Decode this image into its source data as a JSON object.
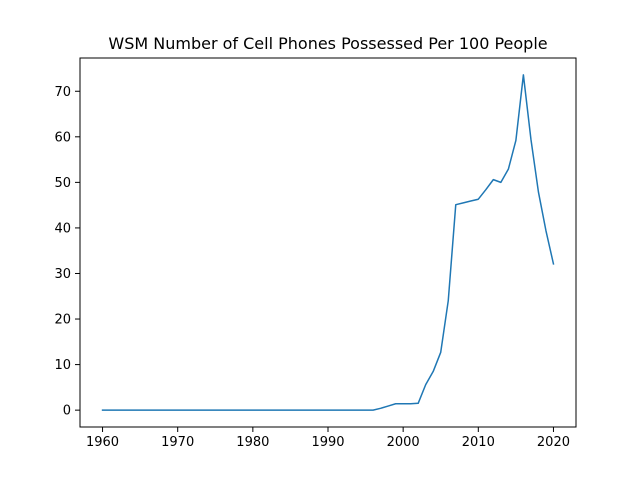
{
  "chart_data": {
    "type": "line",
    "title": "WSM Number of Cell Phones Possessed Per 100 People",
    "xlabel": "",
    "ylabel": "",
    "xlim": [
      1957.0,
      2023.0
    ],
    "ylim": [
      -3.7,
      77.3
    ],
    "x_ticks": [
      1960,
      1970,
      1980,
      1990,
      2000,
      2010,
      2020
    ],
    "y_ticks": [
      0,
      10,
      20,
      30,
      40,
      50,
      60,
      70
    ],
    "grid": false,
    "legend": "none",
    "series": [
      {
        "color": "#1f77b4",
        "x": [
          1960,
          1961,
          1962,
          1963,
          1964,
          1965,
          1966,
          1967,
          1968,
          1969,
          1970,
          1971,
          1972,
          1973,
          1974,
          1975,
          1976,
          1977,
          1978,
          1979,
          1980,
          1981,
          1982,
          1983,
          1984,
          1985,
          1986,
          1987,
          1988,
          1989,
          1990,
          1991,
          1992,
          1993,
          1994,
          1995,
          1996,
          1997,
          1998,
          1999,
          2000,
          2001,
          2002,
          2003,
          2004,
          2005,
          2006,
          2007,
          2008,
          2009,
          2010,
          2011,
          2012,
          2013,
          2014,
          2015,
          2016,
          2017,
          2018,
          2019,
          2020
        ],
        "y": [
          0,
          0,
          0,
          0,
          0,
          0,
          0,
          0,
          0,
          0,
          0,
          0,
          0,
          0,
          0,
          0,
          0,
          0,
          0,
          0,
          0,
          0,
          0,
          0,
          0,
          0,
          0,
          0,
          0,
          0,
          0,
          0,
          0,
          0,
          0,
          0,
          0,
          0.4,
          0.9,
          1.4,
          1.4,
          1.4,
          1.5,
          5.6,
          8.5,
          12.7,
          24.0,
          45.1,
          45.5,
          45.9,
          46.3,
          48.4,
          50.6,
          50.0,
          52.9,
          59.2,
          73.6,
          59.5,
          47.9,
          39.4,
          32.1
        ]
      }
    ]
  }
}
